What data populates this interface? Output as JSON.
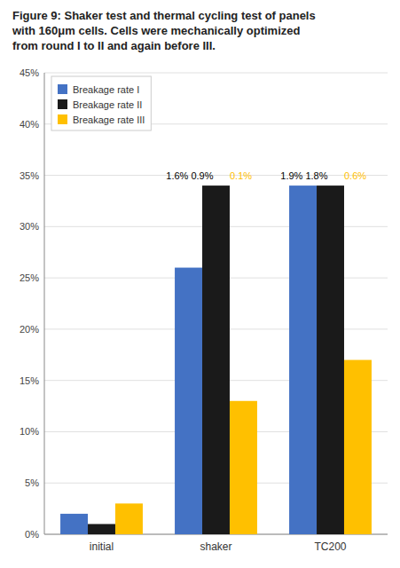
{
  "chart_data": {
    "type": "bar",
    "title": "Figure 9: Shaker test and thermal cycling test of panels\nwith 160μm cells. Cells were mechanically optimized\nfrom round I to II and again before III.",
    "categories": [
      "initial",
      "shaker",
      "TC200"
    ],
    "series": [
      {
        "name": "Breakage rate I",
        "color": "#4472C4",
        "values": [
          2.0,
          26.0,
          34.0
        ]
      },
      {
        "name": "Breakage rate II",
        "color": "#1a1a1a",
        "values": [
          1.0,
          34.0,
          34.0
        ]
      },
      {
        "name": "Breakage rate III",
        "color": "#FFC000",
        "values": [
          3.0,
          13.0,
          17.0
        ]
      }
    ],
    "ylim": [
      0,
      45
    ],
    "yticks": [
      {
        "value": 0,
        "label": "0%"
      },
      {
        "value": 5,
        "label": "5%"
      },
      {
        "value": 10,
        "label": "10%"
      },
      {
        "value": 15,
        "label": "15%"
      },
      {
        "value": 20,
        "label": "20%"
      },
      {
        "value": 25,
        "label": "25%"
      },
      {
        "value": 30,
        "label": "30%"
      },
      {
        "value": 35,
        "label": "35%"
      },
      {
        "value": 40,
        "label": "40%"
      },
      {
        "value": 45,
        "label": "45%"
      }
    ],
    "grid": true,
    "legend": "top-left",
    "annotations": [
      {
        "text": "1.6% 0.9%",
        "category": "shaker",
        "color": "#000000",
        "align": "left-of-center"
      },
      {
        "text": "0.1%",
        "category": "shaker",
        "color": "#FFC000",
        "align": "right-of-center"
      },
      {
        "text": "1.9% 1.8%",
        "category": "TC200",
        "color": "#000000",
        "align": "left-of-center"
      },
      {
        "text": "0.6%",
        "category": "TC200",
        "color": "#FFC000",
        "align": "right-of-center"
      }
    ]
  }
}
